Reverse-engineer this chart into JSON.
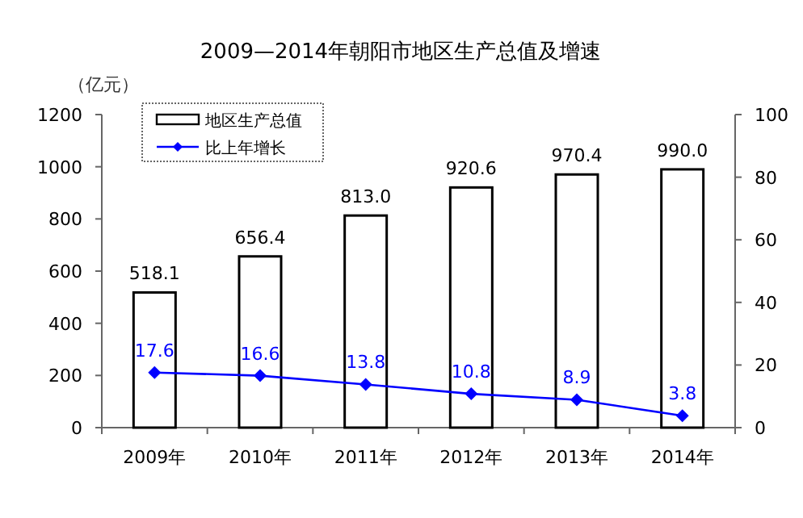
{
  "chart_data": {
    "type": "bar",
    "title": "2009—2014年朝阳市地区生产总值及增速",
    "ylabel": "（亿元）",
    "categories": [
      "2009年",
      "2010年",
      "2011年",
      "2012年",
      "2013年",
      "2014年"
    ],
    "series": [
      {
        "name": "地区生产总值",
        "color": "#ffffff",
        "values": [
          518.1,
          656.4,
          813.0,
          920.6,
          970.4,
          990.0
        ],
        "value_labels": [
          "518.1",
          "656.4",
          "813.0",
          "920.6",
          "970.4",
          "990.0"
        ]
      },
      {
        "name": "比上年增长",
        "type": "line",
        "axis": "y2",
        "color": "#0000ff",
        "marker": "diamond",
        "values": [
          17.6,
          16.6,
          13.8,
          10.8,
          8.9,
          3.8
        ],
        "value_labels": [
          "17.6",
          "16.6",
          "13.8",
          "10.8",
          "8.9",
          "3.8"
        ]
      }
    ],
    "ylim": [
      0,
      1200
    ],
    "yticks": [
      0,
      200,
      400,
      600,
      800,
      1000,
      1200
    ],
    "y2lim": [
      0,
      100
    ],
    "y2ticks": [
      0,
      20,
      40,
      60,
      80,
      100
    ],
    "legend": "top left",
    "grid": false
  }
}
